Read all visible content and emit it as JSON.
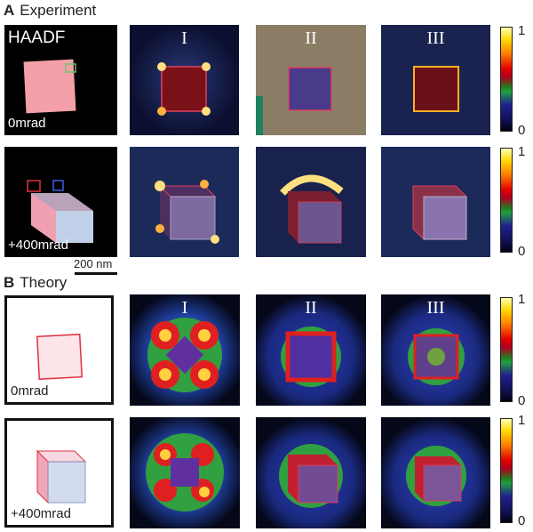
{
  "sections": {
    "experiment": {
      "letter": "A",
      "title": "Experiment"
    },
    "theory": {
      "letter": "B",
      "title": "Theory"
    }
  },
  "labels": {
    "haadf": "HAADF",
    "angle_0": "0mrad",
    "angle_400": "+400mrad",
    "scale_bar": "200 nm",
    "roman_1": "I",
    "roman_2": "II",
    "roman_3": "III"
  },
  "colorbar": {
    "max": "1",
    "min": "0"
  }
}
